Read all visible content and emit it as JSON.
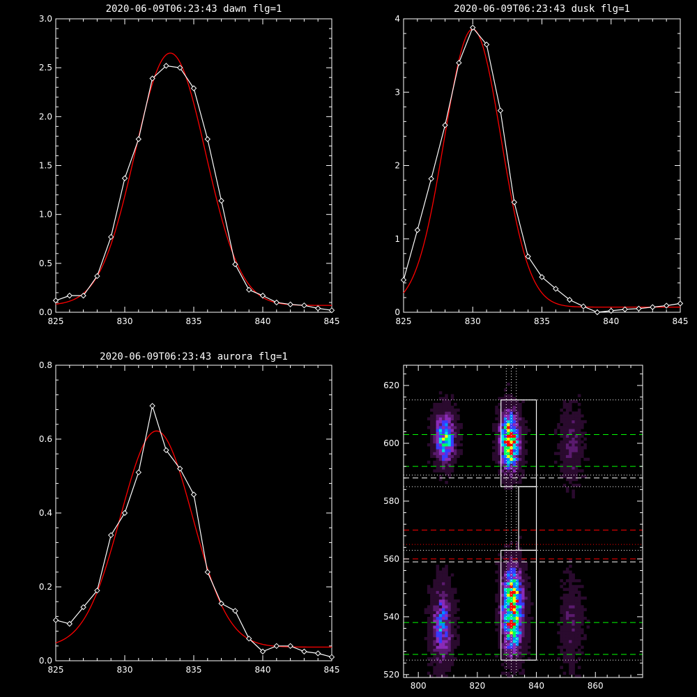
{
  "chart_data": [
    {
      "id": "dawn",
      "type": "line",
      "title": "2020-06-09T06:23:43 dawn flg=1",
      "xlim": [
        825,
        845
      ],
      "ylim": [
        0,
        3.0
      ],
      "xticks": [
        "825",
        "830",
        "835",
        "840",
        "845"
      ],
      "yticks": [
        "0.0",
        "0.5",
        "1.0",
        "1.5",
        "2.0",
        "2.5",
        "3.0"
      ],
      "series": [
        {
          "style": "data",
          "color": "#ffffff",
          "x": [
            825,
            826,
            827,
            828,
            829,
            830,
            831,
            832,
            833,
            834,
            835,
            836,
            837,
            838,
            839,
            840,
            841,
            842,
            843,
            844,
            845
          ],
          "y": [
            0.12,
            0.17,
            0.17,
            0.37,
            0.77,
            1.37,
            1.77,
            2.39,
            2.52,
            2.5,
            2.29,
            1.77,
            1.14,
            0.49,
            0.23,
            0.17,
            0.1,
            0.08,
            0.07,
            0.04,
            0.02
          ]
        },
        {
          "style": "fit",
          "color": "#ff0000",
          "amp": 2.58,
          "center": 833.3,
          "sigma": 2.55,
          "base": 0.07
        }
      ]
    },
    {
      "id": "dusk",
      "type": "line",
      "title": "2020-06-09T06:23:43 dusk flg=1",
      "xlim": [
        825,
        845
      ],
      "ylim": [
        0,
        4
      ],
      "xticks": [
        "825",
        "830",
        "835",
        "840",
        "845"
      ],
      "yticks": [
        "0",
        "1",
        "2",
        "3",
        "4"
      ],
      "series": [
        {
          "style": "data",
          "color": "#ffffff",
          "x": [
            825,
            826,
            827,
            828,
            829,
            830,
            831,
            832,
            833,
            834,
            835,
            836,
            837,
            838,
            839,
            840,
            841,
            842,
            843,
            844,
            845
          ],
          "y": [
            0.44,
            1.12,
            1.82,
            2.55,
            3.4,
            3.88,
            3.65,
            2.75,
            1.5,
            0.76,
            0.48,
            0.32,
            0.17,
            0.08,
            0.0,
            0.02,
            0.04,
            0.05,
            0.07,
            0.09,
            0.12
          ]
        },
        {
          "style": "fit",
          "color": "#ff0000",
          "amp": 3.79,
          "center": 830.0,
          "sigma": 2.05,
          "base": 0.07
        }
      ]
    },
    {
      "id": "aurora",
      "type": "line",
      "title": "2020-06-09T06:23:43 aurora flg=1",
      "xlim": [
        825,
        845
      ],
      "ylim": [
        0,
        0.8
      ],
      "xticks": [
        "825",
        "830",
        "835",
        "840",
        "845"
      ],
      "yticks": [
        "0.0",
        "0.2",
        "0.4",
        "0.6",
        "0.8"
      ],
      "series": [
        {
          "style": "data",
          "color": "#ffffff",
          "x": [
            825,
            826,
            827,
            828,
            829,
            830,
            831,
            832,
            833,
            834,
            835,
            836,
            837,
            838,
            839,
            840,
            841,
            842,
            843,
            844,
            845
          ],
          "y": [
            0.11,
            0.1,
            0.145,
            0.19,
            0.34,
            0.4,
            0.51,
            0.69,
            0.57,
            0.52,
            0.45,
            0.24,
            0.155,
            0.135,
            0.06,
            0.025,
            0.04,
            0.04,
            0.025,
            0.02,
            0.01
          ]
        },
        {
          "style": "fit",
          "color": "#ff0000",
          "amp": 0.585,
          "center": 832.3,
          "sigma": 2.6,
          "base": 0.037
        }
      ]
    },
    {
      "id": "image",
      "type": "heatmap",
      "xlim": [
        795,
        876
      ],
      "ylim": [
        519,
        627
      ],
      "xticks": [
        800,
        820,
        840,
        860
      ],
      "yticks": [
        520,
        540,
        560,
        580,
        600,
        620
      ],
      "colormap": [
        "#000000",
        "#2a0a2e",
        "#5a1a6e",
        "#8a2ab8",
        "#3a3aff",
        "#0090ff",
        "#00e0e0",
        "#00ff60",
        "#ffff00",
        "#ff0000"
      ],
      "blobs": [
        {
          "x": 809,
          "y": 602,
          "sx": 2.3,
          "sy": 6,
          "amp": 0.6
        },
        {
          "x": 831,
          "y": 601,
          "sx": 2.2,
          "sy": 6.5,
          "amp": 0.95
        },
        {
          "x": 808,
          "y": 537,
          "sx": 2.3,
          "sy": 9,
          "amp": 0.42
        },
        {
          "x": 832,
          "y": 539,
          "sx": 2.4,
          "sy": 8,
          "amp": 0.72
        },
        {
          "x": 832,
          "y": 550,
          "sx": 2.3,
          "sy": 7,
          "amp": 0.42
        },
        {
          "x": 852,
          "y": 600,
          "sx": 2.5,
          "sy": 8,
          "amp": 0.2
        },
        {
          "x": 852,
          "y": 538,
          "sx": 2.5,
          "sy": 10,
          "amp": 0.16
        }
      ],
      "boxes": [
        {
          "x0": 828,
          "x1": 840,
          "y0": 585,
          "y1": 615,
          "color": "#ffffff"
        },
        {
          "x0": 828,
          "x1": 840,
          "y0": 525,
          "y1": 563,
          "color": "#ffffff"
        },
        {
          "x0": 834,
          "x1": 840,
          "y0": 563,
          "y1": 585,
          "color": "#ffffff"
        }
      ],
      "vlines": [
        {
          "x": 829.8,
          "color": "#ffffff",
          "dash": "dotted"
        },
        {
          "x": 831.5,
          "color": "#ffffff",
          "dash": "dotted"
        },
        {
          "x": 833.2,
          "color": "#ffffff",
          "dash": "dotted"
        }
      ],
      "hlines": [
        {
          "y": 615,
          "color": "#ffffff",
          "dash": "dotted"
        },
        {
          "y": 603,
          "color": "#00ff00",
          "dash": "dashed"
        },
        {
          "y": 592,
          "color": "#00ff00",
          "dash": "dashed"
        },
        {
          "y": 589,
          "color": "#ffffff",
          "dash": "dotted"
        },
        {
          "y": 588,
          "color": "#ffffff",
          "dash": "dashed"
        },
        {
          "y": 585,
          "color": "#ffffff",
          "dash": "dotted"
        },
        {
          "y": 570,
          "color": "#ff0000",
          "dash": "dashed"
        },
        {
          "y": 565,
          "color": "#ff0000",
          "dash": "dotted"
        },
        {
          "y": 563,
          "color": "#ffffff",
          "dash": "dotted"
        },
        {
          "y": 560,
          "color": "#ff0000",
          "dash": "dashed"
        },
        {
          "y": 559,
          "color": "#ffffff",
          "dash": "dashed"
        },
        {
          "y": 538,
          "color": "#00ff00",
          "dash": "dashed"
        },
        {
          "y": 527,
          "color": "#00ff00",
          "dash": "dashed"
        },
        {
          "y": 525,
          "color": "#ffffff",
          "dash": "dotted"
        }
      ]
    }
  ]
}
